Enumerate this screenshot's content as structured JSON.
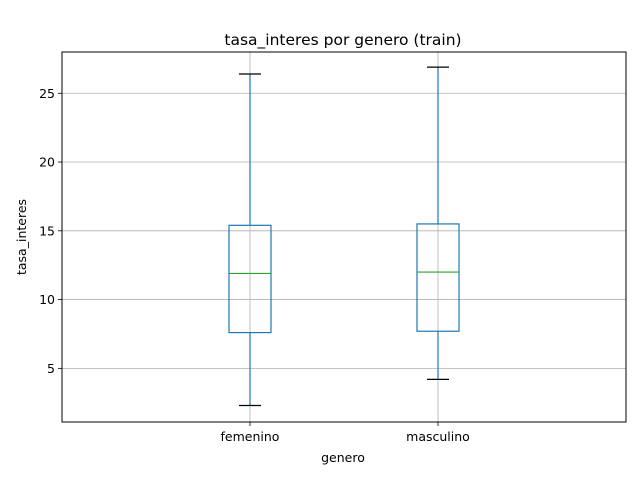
{
  "chart_data": {
    "type": "box",
    "title": "tasa_interes por genero (train)",
    "xlabel": "genero",
    "ylabel": "tasa_interes",
    "categories": [
      "femenino",
      "masculino"
    ],
    "boxes": [
      {
        "category": "femenino",
        "whisker_low": 2.3,
        "q1": 7.6,
        "median": 11.9,
        "q3": 15.4,
        "whisker_high": 26.4
      },
      {
        "category": "masculino",
        "whisker_low": 4.2,
        "q1": 7.7,
        "median": 12.0,
        "q3": 15.5,
        "whisker_high": 26.9
      }
    ],
    "ylim": [
      1.1,
      28.0
    ],
    "yticks": [
      5,
      10,
      15,
      20,
      25
    ],
    "grid": true,
    "colors": {
      "box": "#1f77b4",
      "median": "#2ca02c",
      "whisker_cap": "#000000",
      "grid": "#b0b0b0"
    }
  }
}
